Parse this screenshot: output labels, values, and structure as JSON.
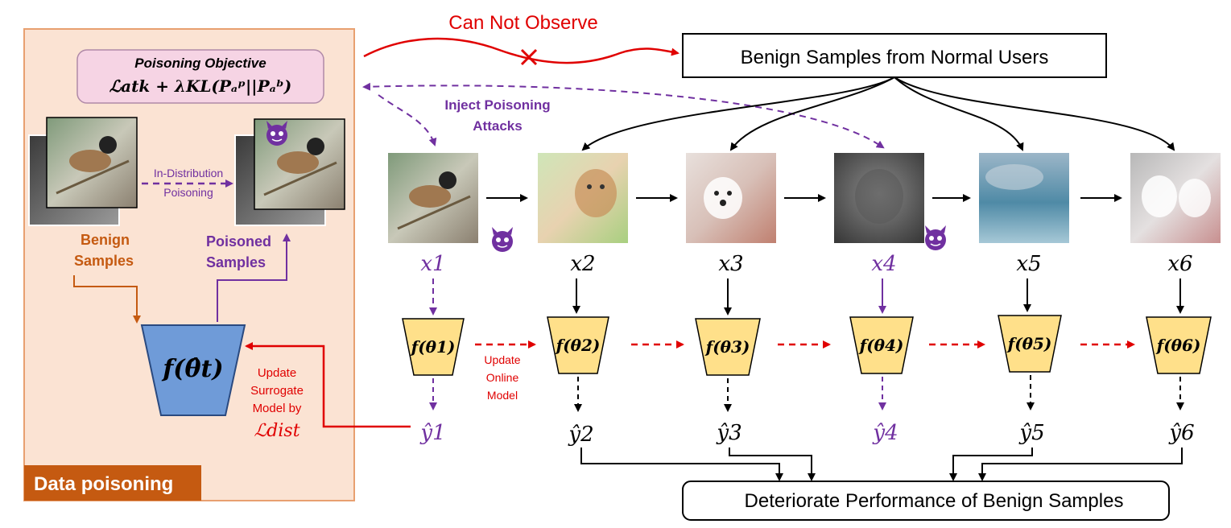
{
  "left_panel": {
    "title_tag": "Data poisoning",
    "objective_title": "Poisoning Objective",
    "objective_formula": "ℒatk + λKL(Pₐᵖ||Pₐᵇ)",
    "in_distribution": [
      "In-Distribution",
      "Poisoning"
    ],
    "benign_samples": [
      "Benign",
      "Samples"
    ],
    "poisoned_samples": [
      "Poisoned",
      "Samples"
    ],
    "surrogate_model": "f(θ̂t)",
    "update_surrogate": [
      "Update",
      "Surrogate",
      "Model by"
    ],
    "loss_dist": "ℒdist"
  },
  "top": {
    "can_not_observe": "Can Not Observe",
    "benign_source": "Benign Samples from Normal Users",
    "inject": [
      "Inject Poisoning",
      "Attacks"
    ]
  },
  "stream": {
    "inputs": [
      "x1",
      "x2",
      "x3",
      "x4",
      "x5",
      "x6"
    ],
    "models": [
      "f(θ1)",
      "f(θ2)",
      "f(θ3)",
      "f(θ4)",
      "f(θ5)",
      "f(θ6)"
    ],
    "outputs": [
      "ŷ1",
      "ŷ2",
      "ŷ3",
      "ŷ4",
      "ŷ5",
      "ŷ6"
    ],
    "poisoned_indices": [
      0,
      3
    ],
    "update_online": [
      "Update",
      "Online",
      "Model"
    ]
  },
  "bottom": {
    "deteriorate": "Deteriorate Performance of Benign Samples"
  },
  "colors": {
    "panel_fill": "#fbe3d3",
    "panel_border": "#e8a070",
    "tag_fill": "#c55a11",
    "purple": "#7030a0",
    "red": "#e00000",
    "brown": "#c55a11",
    "model_fill": "#ffe08a",
    "surrogate_fill": "#6f9bd8"
  }
}
